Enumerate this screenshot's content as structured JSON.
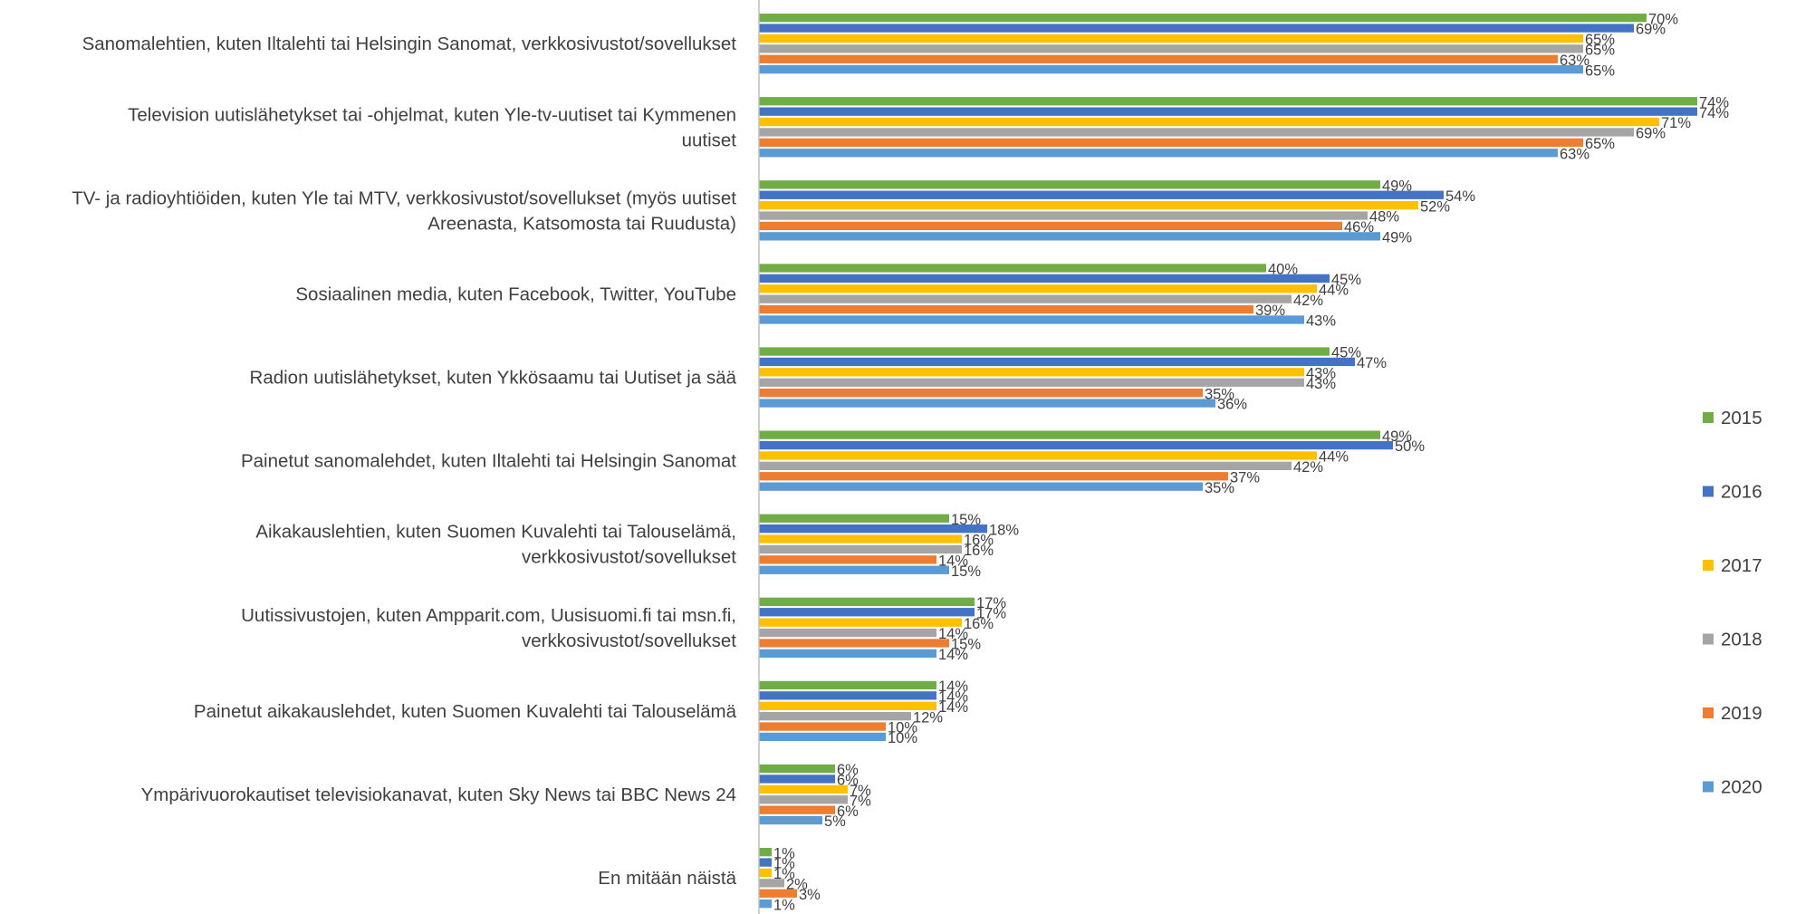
{
  "chart_data": {
    "type": "bar",
    "orientation": "horizontal",
    "categories": [
      [
        "Sanomalehtien, kuten Iltalehti tai Helsingin Sanomat, verkkosivustot/sovellukset"
      ],
      [
        "Television uutislähetykset tai -ohjelmat, kuten Yle-tv-uutiset tai Kymmenen",
        "uutiset"
      ],
      [
        "TV- ja radioyhtiöiden, kuten Yle tai MTV, verkkosivustot/sovellukset (myös uutiset",
        "Areenasta, Katsomosta tai Ruudusta)"
      ],
      [
        "Sosiaalinen media, kuten Facebook, Twitter, YouTube"
      ],
      [
        "Radion uutislähetykset, kuten Ykkösaamu tai Uutiset ja sää"
      ],
      [
        "Painetut sanomalehdet, kuten Iltalehti tai Helsingin Sanomat"
      ],
      [
        "Aikakauslehtien, kuten Suomen Kuvalehti tai Talouselämä,",
        "verkkosivustot/sovellukset"
      ],
      [
        "Uutissivustojen, kuten Ampparit.com, Uusisuomi.fi tai msn.fi,",
        "verkkosivustot/sovellukset"
      ],
      [
        "Painetut aikakauslehdet, kuten Suomen Kuvalehti tai Talouselämä"
      ],
      [
        "Ympärivuorokautiset televisiokanavat, kuten Sky News tai BBC News 24"
      ],
      [
        "En mitään näistä"
      ]
    ],
    "series": [
      {
        "name": "2015",
        "color": "#70AD47",
        "values": [
          70,
          74,
          49,
          40,
          45,
          49,
          15,
          17,
          14,
          6,
          1
        ]
      },
      {
        "name": "2016",
        "color": "#4472C4",
        "values": [
          69,
          74,
          54,
          45,
          47,
          50,
          18,
          17,
          14,
          6,
          1
        ]
      },
      {
        "name": "2017",
        "color": "#FFC000",
        "values": [
          65,
          71,
          52,
          44,
          43,
          44,
          16,
          16,
          14,
          7,
          1
        ]
      },
      {
        "name": "2018",
        "color": "#A5A5A5",
        "values": [
          65,
          69,
          48,
          42,
          43,
          42,
          16,
          14,
          12,
          7,
          2
        ]
      },
      {
        "name": "2019",
        "color": "#ED7D31",
        "values": [
          63,
          65,
          46,
          39,
          35,
          37,
          14,
          15,
          10,
          6,
          3
        ]
      },
      {
        "name": "2020",
        "color": "#5B9BD5",
        "values": [
          65,
          63,
          49,
          43,
          36,
          35,
          15,
          14,
          10,
          5,
          1
        ]
      }
    ],
    "value_suffix": "%",
    "xlim": [
      0,
      75
    ],
    "grid": false,
    "legend": "right"
  }
}
